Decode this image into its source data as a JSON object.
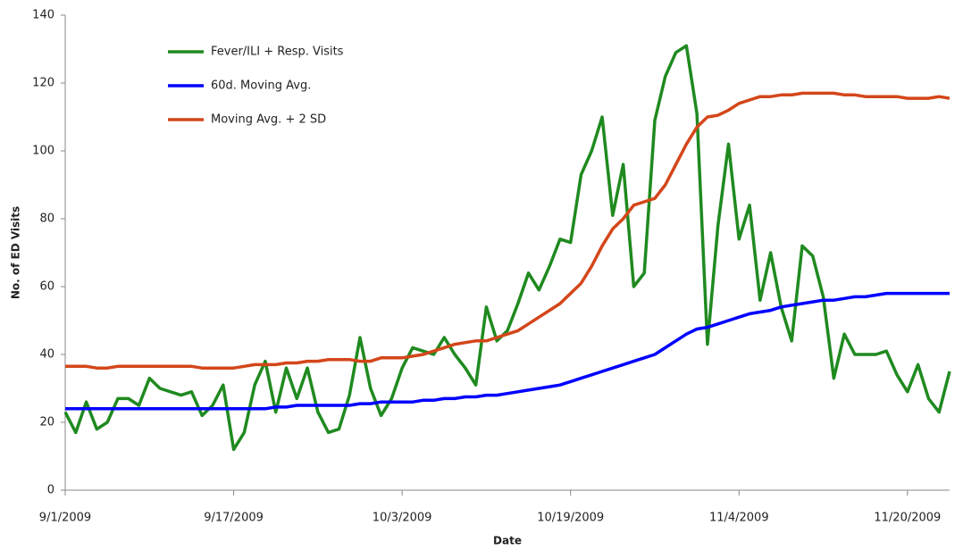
{
  "chart_data": {
    "type": "line",
    "x_label": "Date",
    "y_label": "No. of ED Visits",
    "x": [
      "9/1/2009",
      "9/2/2009",
      "9/3/2009",
      "9/4/2009",
      "9/5/2009",
      "9/6/2009",
      "9/7/2009",
      "9/8/2009",
      "9/9/2009",
      "9/10/2009",
      "9/11/2009",
      "9/12/2009",
      "9/13/2009",
      "9/14/2009",
      "9/15/2009",
      "9/16/2009",
      "9/17/2009",
      "9/18/2009",
      "9/19/2009",
      "9/20/2009",
      "9/21/2009",
      "9/22/2009",
      "9/23/2009",
      "9/24/2009",
      "9/25/2009",
      "9/26/2009",
      "9/27/2009",
      "9/28/2009",
      "9/29/2009",
      "9/30/2009",
      "10/1/2009",
      "10/2/2009",
      "10/3/2009",
      "10/4/2009",
      "10/5/2009",
      "10/6/2009",
      "10/7/2009",
      "10/8/2009",
      "10/9/2009",
      "10/10/2009",
      "10/11/2009",
      "10/12/2009",
      "10/13/2009",
      "10/14/2009",
      "10/15/2009",
      "10/16/2009",
      "10/17/2009",
      "10/18/2009",
      "10/19/2009",
      "10/20/2009",
      "10/21/2009",
      "10/22/2009",
      "10/23/2009",
      "10/24/2009",
      "10/25/2009",
      "10/26/2009",
      "10/27/2009",
      "10/28/2009",
      "10/29/2009",
      "10/30/2009",
      "10/31/2009",
      "11/1/2009",
      "11/2/2009",
      "11/3/2009",
      "11/4/2009",
      "11/5/2009",
      "11/6/2009",
      "11/7/2009",
      "11/8/2009",
      "11/9/2009",
      "11/10/2009",
      "11/11/2009",
      "11/12/2009",
      "11/13/2009",
      "11/14/2009",
      "11/15/2009",
      "11/16/2009",
      "11/17/2009",
      "11/18/2009",
      "11/19/2009",
      "11/20/2009",
      "11/21/2009",
      "11/22/2009",
      "11/23/2009",
      "11/24/2009"
    ],
    "series": [
      {
        "name": "Fever/ILI + Resp. Visits",
        "color": "#1f8a1f",
        "values": [
          23,
          17,
          26,
          18,
          20,
          27,
          27,
          25,
          33,
          30,
          29,
          28,
          29,
          22,
          25,
          31,
          12,
          17,
          31,
          38,
          23,
          36,
          27,
          36,
          23,
          17,
          18,
          28,
          45,
          30,
          22,
          27,
          36,
          42,
          41,
          40,
          45,
          40,
          36,
          31,
          54,
          44,
          47,
          55,
          64,
          59,
          66,
          74,
          73,
          93,
          100,
          110,
          81,
          96,
          60,
          64,
          109,
          122,
          129,
          131,
          111,
          43,
          78,
          102,
          74,
          84,
          56,
          70,
          54,
          44,
          72,
          69,
          57,
          33,
          46,
          40,
          40,
          40,
          41,
          34,
          29,
          37,
          27,
          23,
          35
        ]
      },
      {
        "name": "60d. Moving Avg.",
        "color": "#0000ff",
        "values": [
          24,
          24,
          24,
          24,
          24,
          24,
          24,
          24,
          24,
          24,
          24,
          24,
          24,
          24,
          24,
          24,
          24,
          24,
          24,
          24,
          24.5,
          24.5,
          25,
          25,
          25,
          25,
          25,
          25,
          25.5,
          25.5,
          26,
          26,
          26,
          26,
          26.5,
          26.5,
          27,
          27,
          27.5,
          27.5,
          28,
          28,
          28.5,
          29,
          29.5,
          30,
          30.5,
          31,
          32,
          33,
          34,
          35,
          36,
          37,
          38,
          39,
          40,
          42,
          44,
          46,
          47.5,
          48,
          49,
          50,
          51,
          52,
          52.5,
          53,
          54,
          54.5,
          55,
          55.5,
          56,
          56,
          56.5,
          57,
          57,
          57.5,
          58,
          58,
          58,
          58,
          58,
          58,
          58
        ]
      },
      {
        "name": "Moving Avg. + 2 SD",
        "color": "#d4461a",
        "values": [
          36.5,
          36.5,
          36.5,
          36,
          36,
          36.5,
          36.5,
          36.5,
          36.5,
          36.5,
          36.5,
          36.5,
          36.5,
          36,
          36,
          36,
          36,
          36.5,
          37,
          37,
          37,
          37.5,
          37.5,
          38,
          38,
          38.5,
          38.5,
          38.5,
          38,
          38,
          39,
          39,
          39,
          39.5,
          40,
          41,
          42,
          43,
          43.5,
          44,
          44,
          45,
          46,
          47,
          49,
          51,
          53,
          55,
          58,
          61,
          66,
          72,
          77,
          80,
          84,
          85,
          86,
          90,
          96,
          102,
          107,
          110,
          110.5,
          112,
          114,
          115,
          116,
          116,
          116.5,
          116.5,
          117,
          117,
          117,
          117,
          116.5,
          116.5,
          116,
          116,
          116,
          116,
          115.5,
          115.5,
          115.5,
          116,
          115.5
        ]
      }
    ],
    "xlim": [
      "9/1/2009",
      "11/24/2009"
    ],
    "xticks": [
      "9/1/2009",
      "9/17/2009",
      "10/3/2009",
      "10/19/2009",
      "11/4/2009",
      "11/20/2009"
    ],
    "ylim": [
      0,
      140
    ],
    "yticks": [
      0,
      20,
      40,
      60,
      80,
      100,
      120,
      140
    ],
    "grid": false,
    "legend": "upper left"
  }
}
